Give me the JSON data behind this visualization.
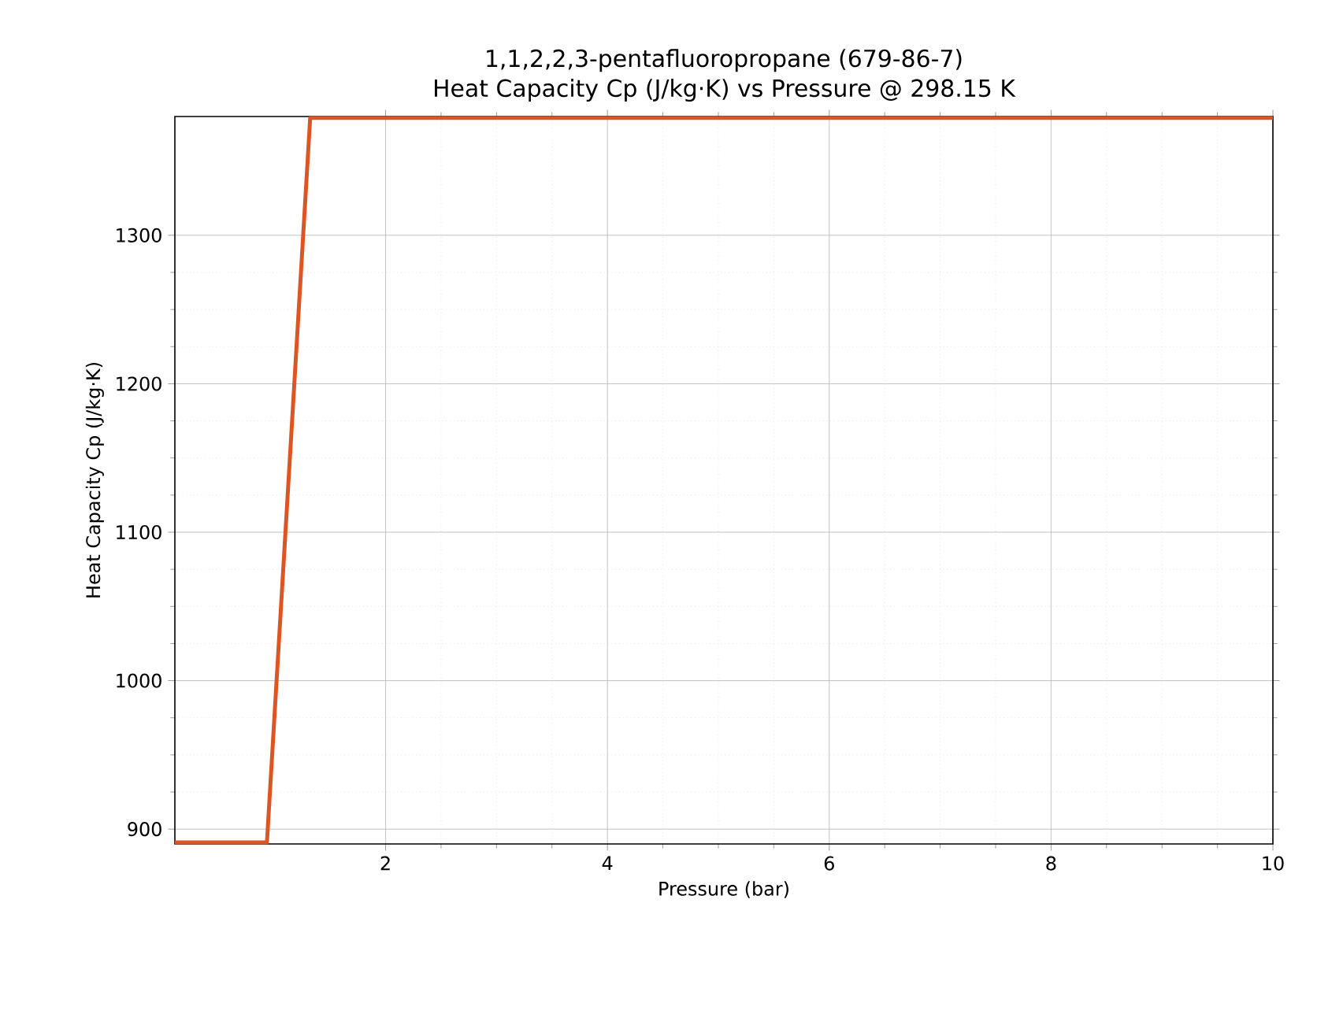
{
  "chart_data": {
    "type": "line",
    "title": "1,1,2,2,3-pentafluoropropane (679-86-7)\nHeat Capacity Cp (J/kg·K) vs Pressure @ 298.15 K",
    "xlabel": "Pressure (bar)",
    "ylabel": "Heat Capacity Cp (J/kg·K)",
    "x": [
      0.1,
      0.93,
      1.32,
      10
    ],
    "series": [
      {
        "color": "#dd5522",
        "values": [
          891,
          891,
          1379,
          1379
        ]
      }
    ],
    "xlim": [
      0.1,
      10
    ],
    "ylim": [
      890,
      1380
    ],
    "xticks": [
      2,
      4,
      6,
      8,
      10
    ],
    "yticks": [
      900,
      1000,
      1100,
      1200,
      1300
    ],
    "grid": true,
    "line_style": "solid",
    "marker": "none"
  }
}
